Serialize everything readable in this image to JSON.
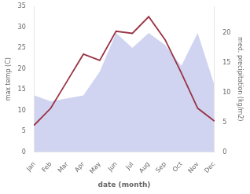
{
  "chart_data": {
    "type": "line",
    "categories": [
      "Jan",
      "Feb",
      "Mar",
      "Apr",
      "May",
      "Jun",
      "Jul",
      "Aug",
      "Sep",
      "Oct",
      "Nov",
      "Dec"
    ],
    "series": [
      {
        "type": "line",
        "color": "#993344",
        "values": [
          6.5,
          10.5,
          17.0,
          23.5,
          22.0,
          29.0,
          28.5,
          32.5,
          27.0,
          19.0,
          10.5,
          7.5
        ]
      },
      {
        "type": "area",
        "axis": "y2",
        "color": "#b0b8e8",
        "values": [
          9.5,
          8.5,
          9.0,
          9.5,
          13.5,
          20.0,
          17.5,
          20.0,
          18.0,
          14.5,
          20.0,
          11.5
        ]
      }
    ],
    "xlabel": "date (month)",
    "ylabel": "max temp (C)",
    "y2label": "med. precipitation (kg/m2)",
    "ylim": [
      0,
      35
    ],
    "yticks": [
      0,
      5,
      10,
      15,
      20,
      25,
      30,
      35
    ],
    "y2lim": [
      0,
      24.5
    ],
    "y2ticks": [
      0,
      5,
      10,
      15,
      20
    ],
    "grid": false
  }
}
